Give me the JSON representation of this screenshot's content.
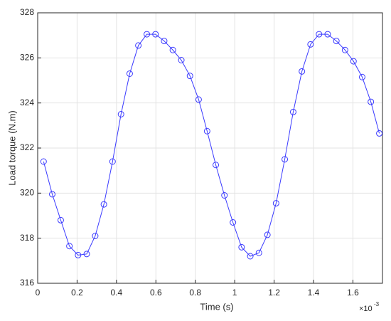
{
  "chart_data": {
    "type": "line",
    "x_label": "Time (s)",
    "y_label": "Load torque (N.m)",
    "x_multiplier": {
      "base": "×10",
      "exponent": "-3"
    },
    "x": [
      0.03,
      0.074,
      0.117,
      0.161,
      0.205,
      0.249,
      0.292,
      0.336,
      0.38,
      0.423,
      0.467,
      0.511,
      0.554,
      0.598,
      0.642,
      0.686,
      0.729,
      0.773,
      0.817,
      0.86,
      0.904,
      0.948,
      0.991,
      1.035,
      1.079,
      1.123,
      1.166,
      1.21,
      1.254,
      1.297,
      1.341,
      1.385,
      1.428,
      1.472,
      1.516,
      1.56,
      1.603,
      1.647,
      1.691,
      1.734
    ],
    "series": [
      {
        "color": "#3a3aff",
        "marker": "o",
        "values": [
          321.4,
          319.95,
          318.8,
          317.65,
          317.25,
          317.3,
          318.1,
          319.5,
          321.4,
          323.5,
          325.3,
          326.55,
          327.05,
          327.05,
          326.75,
          326.35,
          325.9,
          325.2,
          324.15,
          322.75,
          321.25,
          319.9,
          318.7,
          317.6,
          317.2,
          317.35,
          318.15,
          319.55,
          321.5,
          323.6,
          325.4,
          326.6,
          327.05,
          327.05,
          326.75,
          326.35,
          325.85,
          325.15,
          324.05,
          322.65
        ]
      }
    ],
    "xlim": [
      0,
      1.75
    ],
    "xticks": [
      0,
      0.2,
      0.4,
      0.6,
      0.8,
      1,
      1.2,
      1.4,
      1.6
    ],
    "ylim": [
      316,
      328
    ],
    "yticks": [
      316,
      318,
      320,
      322,
      324,
      326,
      328
    ],
    "grid": true
  }
}
